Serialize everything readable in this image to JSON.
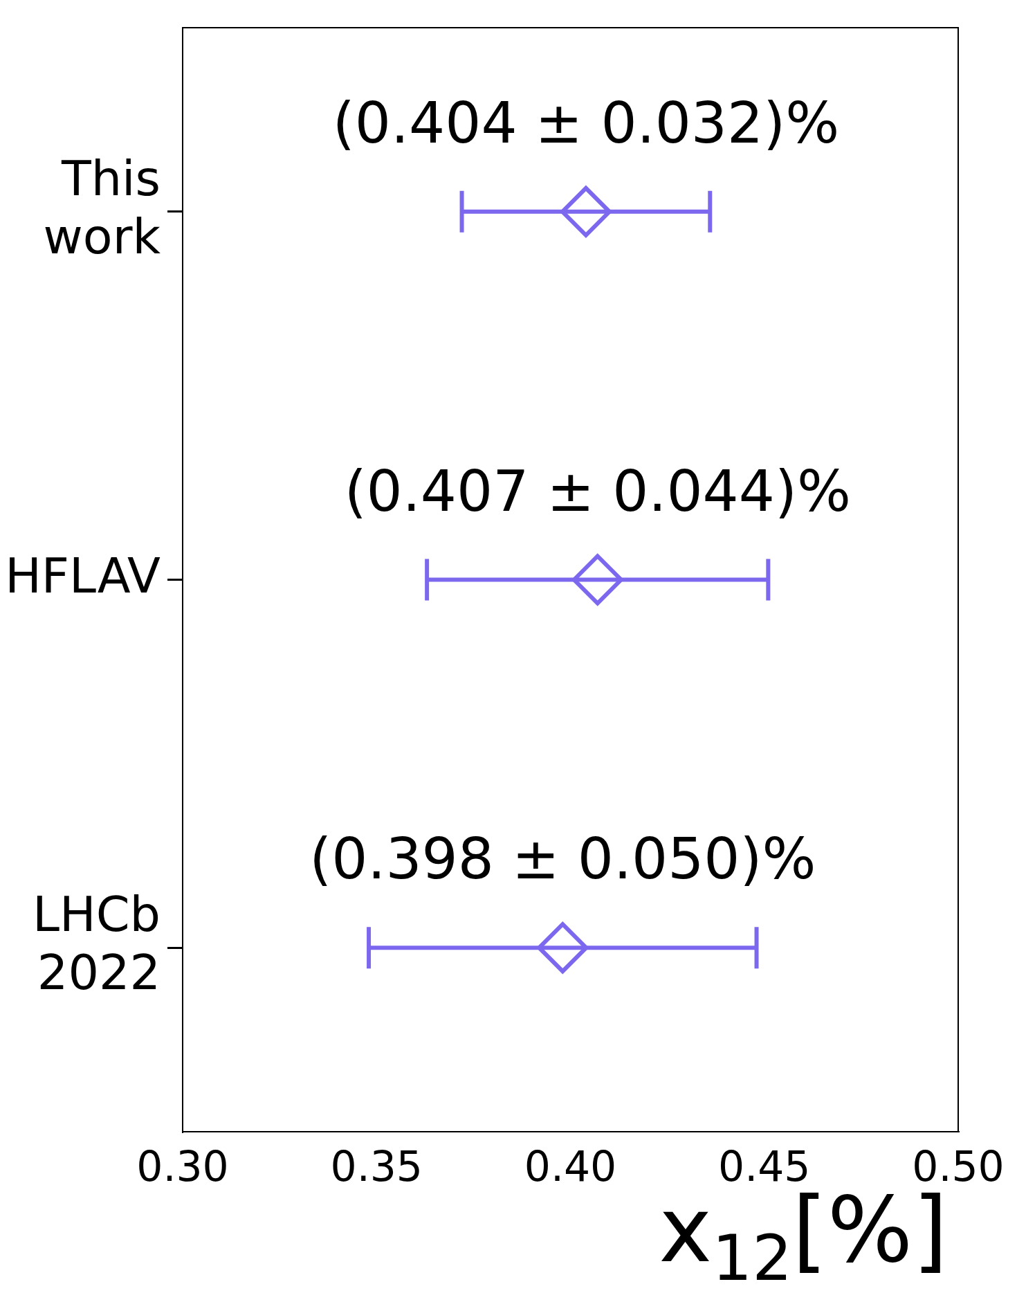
{
  "chart_data": {
    "type": "scatter",
    "orientation": "horizontal",
    "xlabel": "x$_{12}$[%]",
    "categories": [
      "This work",
      "HFLAV",
      "LHCb 2022"
    ],
    "values": [
      0.404,
      0.407,
      0.398
    ],
    "errors": [
      0.032,
      0.044,
      0.05
    ],
    "value_labels": [
      "(0.404 ± 0.032)%",
      "(0.407 ± 0.044)%",
      "(0.398 ± 0.050)%"
    ],
    "color": "#7b68ee",
    "marker": "diamond",
    "grid": false,
    "legend": false,
    "xlim": [
      0.3,
      0.5
    ],
    "xticks": [
      {
        "value": 0.3,
        "label": "0.30"
      },
      {
        "value": 0.35,
        "label": "0.35"
      },
      {
        "value": 0.4,
        "label": "0.40"
      },
      {
        "value": 0.45,
        "label": "0.45"
      },
      {
        "value": 0.5,
        "label": "0.50"
      }
    ]
  }
}
